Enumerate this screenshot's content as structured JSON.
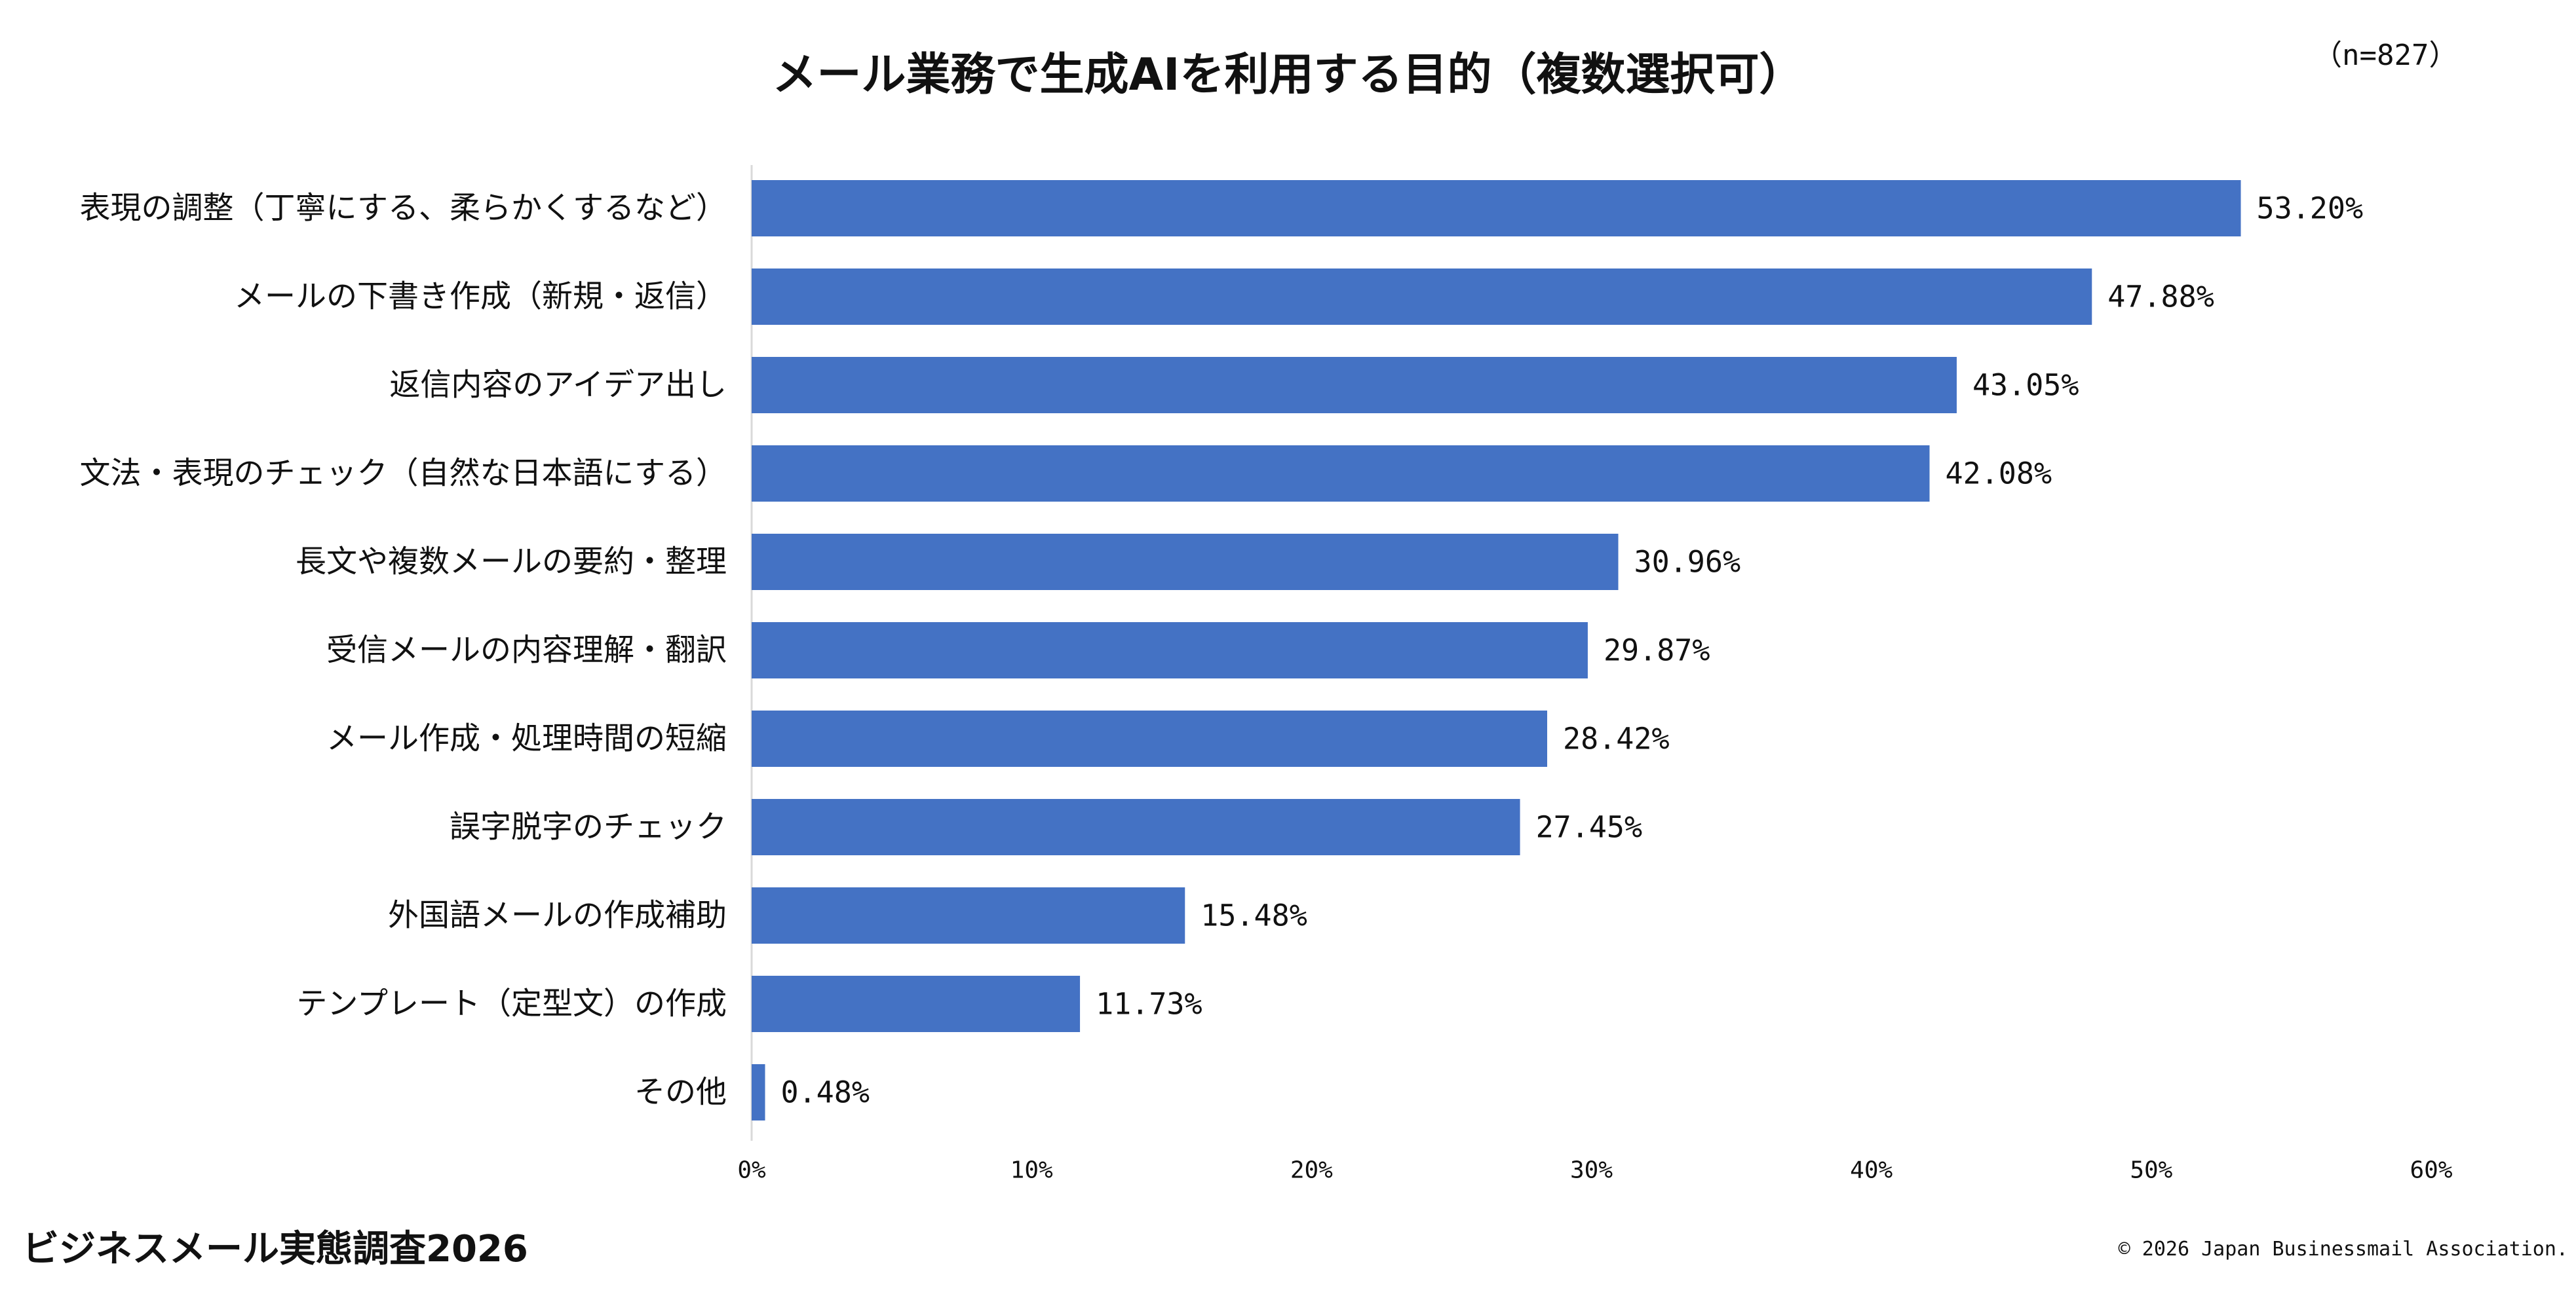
{
  "header": {
    "title": "メール業務で生成AIを利用する目的（複数選択可）",
    "sample_size": "（n=827）"
  },
  "footer": {
    "survey_name": "ビジネスメール実態調査2026",
    "copyright": "© 2026 Japan Businessmail Association."
  },
  "chart_data": {
    "type": "bar",
    "orientation": "horizontal",
    "title": "メール業務で生成AIを利用する目的（複数選択可）",
    "categories": [
      "表現の調整（丁寧にする、柔らかくするなど）",
      "メールの下書き作成（新規・返信）",
      "返信内容のアイデア出し",
      "文法・表現のチェック（自然な日本語にする）",
      "長文や複数メールの要約・整理",
      "受信メールの内容理解・翻訳",
      "メール作成・処理時間の短縮",
      "誤字脱字のチェック",
      "外国語メールの作成補助",
      "テンプレート（定型文）の作成",
      "その他"
    ],
    "values": [
      53.2,
      47.88,
      43.05,
      42.08,
      30.96,
      29.87,
      28.42,
      27.45,
      15.48,
      11.73,
      0.48
    ],
    "value_labels": [
      "53.20%",
      "47.88%",
      "43.05%",
      "42.08%",
      "30.96%",
      "29.87%",
      "28.42%",
      "27.45%",
      "15.48%",
      "11.73%",
      "0.48%"
    ],
    "xlim": [
      0,
      60
    ],
    "x_ticks": [
      0,
      10,
      20,
      30,
      40,
      50,
      60
    ],
    "x_tick_labels": [
      "0%",
      "10%",
      "20%",
      "30%",
      "40%",
      "50%",
      "60%"
    ],
    "bar_color": "#4472C4",
    "grid": false,
    "legend": "none"
  }
}
